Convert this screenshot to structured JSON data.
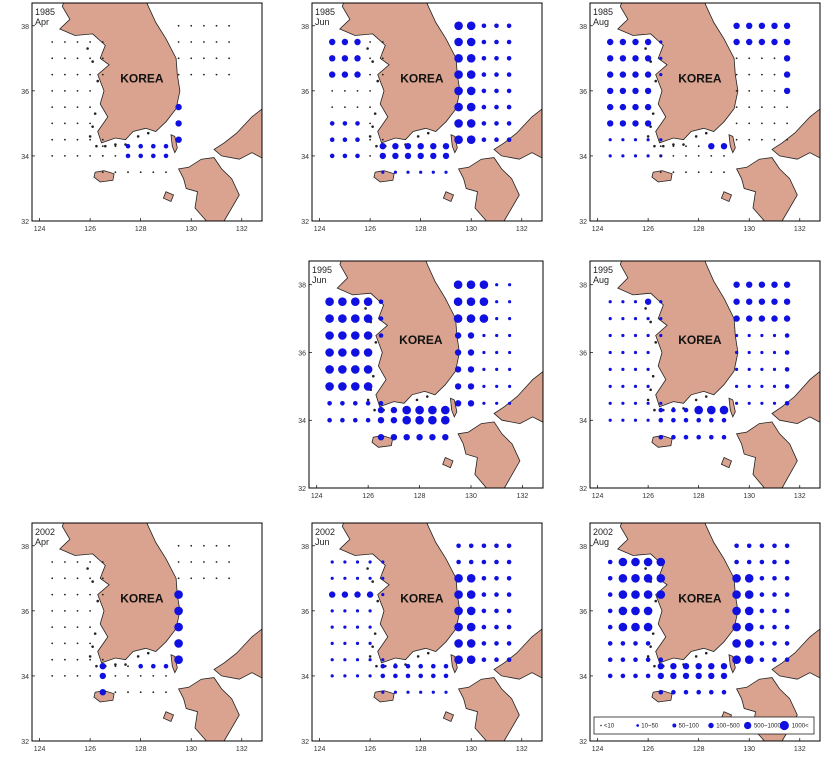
{
  "map_label": "KOREA",
  "lon_ticks": [
    "124",
    "126",
    "128",
    "130",
    "132"
  ],
  "lat_ticks": [
    "32",
    "34",
    "36",
    "38"
  ],
  "colors": {
    "land": "#d9a38f",
    "sea": "#ffffff",
    "dot": "#1010e0",
    "small_dot": "#222222",
    "frame": "#000000"
  },
  "panels": [
    {
      "id": "p1985apr",
      "year": "1985",
      "month": "Apr"
    },
    {
      "id": "p1985jun",
      "year": "1985",
      "month": "Jun"
    },
    {
      "id": "p1985aug",
      "year": "1985",
      "month": "Aug"
    },
    {
      "id": "p1995jun",
      "year": "1995",
      "month": "Jun"
    },
    {
      "id": "p1995aug",
      "year": "1995",
      "month": "Aug"
    },
    {
      "id": "p2002apr",
      "year": "2002",
      "month": "Apr"
    },
    {
      "id": "p2002jun",
      "year": "2002",
      "month": "Jun"
    },
    {
      "id": "p2002aug",
      "year": "2002",
      "month": "Aug"
    }
  ],
  "legend": {
    "items": [
      {
        "label": "<10",
        "size_class": 0
      },
      {
        "label": "10~50",
        "size_class": 1
      },
      {
        "label": "50~100",
        "size_class": 2
      },
      {
        "label": "100~500",
        "size_class": 3
      },
      {
        "label": "500~1000",
        "size_class": 4
      },
      {
        "label": "1000<",
        "size_class": 5
      }
    ]
  }
}
